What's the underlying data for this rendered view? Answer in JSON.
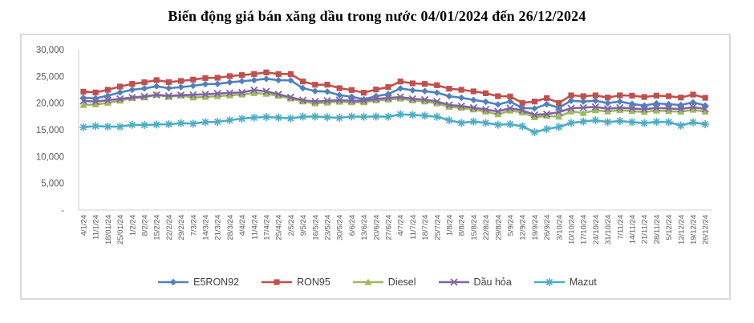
{
  "title": "Biến động giá bán xăng dầu trong nước 04/01/2024 đến 26/12/2024",
  "colors": {
    "background": "#FFFFFF",
    "frame": "#D9D9D9",
    "axis_line": "#D9D9D9",
    "axis_text": "#595959",
    "title_text": "#000000",
    "legend_text": "#404040"
  },
  "chart_data": {
    "type": "line",
    "title": "Biến động giá bán xăng dầu trong nước 04/01/2024 đến 26/12/2024",
    "xlabel": "",
    "ylabel": "",
    "ylim": [
      0,
      30000
    ],
    "y_tick_step": 5000,
    "y_ticks": [
      "-",
      "5,000",
      "10,000",
      "15,000",
      "20,000",
      "25,000",
      "30,000"
    ],
    "grid": false,
    "legend_position": "bottom",
    "x": [
      "4/1/24",
      "11/1/24",
      "18/01/24",
      "25/01/24",
      "1/2/24",
      "8/2/24",
      "15/2/24",
      "22/2/24",
      "29/2/24",
      "7/3/24",
      "14/3/24",
      "21/3/24",
      "28/3/24",
      "4/4/24",
      "11/4/24",
      "17/4/24",
      "25/4/24",
      "2/5/24",
      "9/5/24",
      "16/5/24",
      "23/5/24",
      "30/5/24",
      "6/6/24",
      "13/6/24",
      "20/6/24",
      "27/6/24",
      "4/7/24",
      "11/7/24",
      "18/7/24",
      "25/7/24",
      "1/8/24",
      "8/8/24",
      "15/8/24",
      "22/8/24",
      "29/8/24",
      "5/9/24",
      "12/9/24",
      "19/9/24",
      "26/9/24",
      "3/10/24",
      "10/10/24",
      "17/10/24",
      "24/10/24",
      "31/10/24",
      "7/11/24",
      "14/11/24",
      "21/11/24",
      "28/11/24",
      "5/12/24",
      "12/12/24",
      "19/12/24",
      "26/12/24"
    ],
    "series": [
      {
        "name": "E5RON92",
        "color": "#4F81BD",
        "marker": "diamond",
        "values": [
          21000,
          20900,
          21400,
          22000,
          22500,
          22750,
          23150,
          22800,
          23000,
          23250,
          23550,
          23600,
          23900,
          24100,
          24300,
          24550,
          24300,
          24250,
          22800,
          22250,
          22150,
          21500,
          21200,
          20700,
          21300,
          21700,
          22750,
          22400,
          22250,
          21950,
          21300,
          21000,
          20600,
          20250,
          19750,
          20300,
          19100,
          19000,
          19800,
          19150,
          20450,
          20300,
          20450,
          20000,
          20300,
          19850,
          19550,
          19950,
          19800,
          19650,
          20150,
          19550
        ]
      },
      {
        "name": "RON95",
        "color": "#C0504D",
        "marker": "square",
        "values": [
          22150,
          22000,
          22500,
          23100,
          23600,
          23900,
          24300,
          23950,
          24150,
          24400,
          24700,
          24750,
          25050,
          25250,
          25450,
          25750,
          25450,
          25450,
          24050,
          23450,
          23450,
          22800,
          22450,
          21950,
          22550,
          23000,
          24050,
          23700,
          23600,
          23350,
          22700,
          22500,
          22200,
          21850,
          21300,
          21250,
          20050,
          20300,
          20950,
          20050,
          21450,
          21300,
          21450,
          21050,
          21450,
          21400,
          21150,
          21400,
          21300,
          21050,
          21600,
          21000
        ]
      },
      {
        "name": "Diesel",
        "color": "#9BBB59",
        "marker": "triangle",
        "values": [
          19650,
          19750,
          20050,
          20450,
          20950,
          21050,
          21550,
          21150,
          21450,
          21050,
          21150,
          21300,
          21450,
          21600,
          21850,
          21750,
          21350,
          20850,
          20300,
          19950,
          20100,
          20250,
          20150,
          20150,
          20500,
          20650,
          20850,
          20500,
          20300,
          19950,
          19300,
          19100,
          18800,
          18400,
          17900,
          18600,
          18250,
          17350,
          17600,
          17450,
          18450,
          18150,
          18650,
          18450,
          18700,
          18500,
          18350,
          18600,
          18500,
          18400,
          18750,
          18400
        ]
      },
      {
        "name": "Dầu hỏa",
        "color": "#8064A2",
        "marker": "x",
        "values": [
          20400,
          20300,
          20550,
          20800,
          21050,
          21250,
          21550,
          21350,
          21500,
          21550,
          21650,
          21800,
          21900,
          22000,
          22450,
          22200,
          21650,
          21100,
          20550,
          20300,
          20450,
          20550,
          20450,
          20450,
          20800,
          20950,
          21150,
          20800,
          20650,
          20300,
          19650,
          19450,
          19150,
          18800,
          18450,
          19050,
          18650,
          17800,
          17950,
          18300,
          19050,
          19150,
          19300,
          18950,
          19150,
          19000,
          18850,
          19100,
          19000,
          18900,
          19250,
          18900
        ]
      },
      {
        "name": "Mazut",
        "color": "#4BACC6",
        "marker": "star",
        "values": [
          15500,
          15700,
          15600,
          15600,
          15950,
          15900,
          16000,
          16050,
          16250,
          16150,
          16450,
          16500,
          16800,
          17100,
          17300,
          17400,
          17300,
          17150,
          17450,
          17500,
          17350,
          17250,
          17500,
          17450,
          17500,
          17450,
          17900,
          17800,
          17650,
          17450,
          16800,
          16300,
          16550,
          16300,
          15950,
          16050,
          15650,
          14550,
          15150,
          15550,
          16300,
          16550,
          16800,
          16450,
          16650,
          16450,
          16250,
          16500,
          16450,
          15800,
          16400,
          16050
        ]
      }
    ]
  }
}
